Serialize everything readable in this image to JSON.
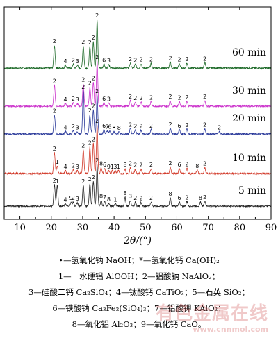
{
  "chart_data": {
    "type": "line",
    "xlabel": "2θ/(°)",
    "xlim": [
      5,
      90
    ],
    "xticks": [
      10,
      20,
      30,
      40,
      50,
      60,
      70,
      80,
      90
    ],
    "y_axis": "none",
    "grid": false,
    "series": [
      {
        "name": "60 min",
        "color": "#1f6b2a",
        "peaks": [
          {
            "x": 21.0,
            "h": 0.47,
            "label": "2"
          },
          {
            "x": 24.5,
            "h": 0.06,
            "label": "4"
          },
          {
            "x": 27.0,
            "h": 0.08,
            "label": "2"
          },
          {
            "x": 28.3,
            "h": 0.06,
            "label": "3"
          },
          {
            "x": 30.2,
            "h": 0.46,
            "label": "2"
          },
          {
            "x": 32.3,
            "h": 0.44,
            "label": "2"
          },
          {
            "x": 33.4,
            "h": 0.54,
            "label": "2"
          },
          {
            "x": 34.6,
            "h": 1.0,
            "label": "2"
          },
          {
            "x": 36.8,
            "h": 0.08,
            "label": "6"
          },
          {
            "x": 38.3,
            "h": 0.07,
            "label": "3"
          },
          {
            "x": 45.2,
            "h": 0.1,
            "label": "2"
          },
          {
            "x": 46.8,
            "h": 0.08,
            "label": "2"
          },
          {
            "x": 48.6,
            "h": 0.09,
            "label": "2"
          },
          {
            "x": 51.8,
            "h": 0.09,
            "label": "2"
          },
          {
            "x": 57.9,
            "h": 0.12,
            "label": "2"
          },
          {
            "x": 60.8,
            "h": 0.09,
            "label": "2"
          },
          {
            "x": 63.2,
            "h": 0.1,
            "label": "2"
          },
          {
            "x": 68.9,
            "h": 0.11,
            "label": "2"
          }
        ]
      },
      {
        "name": "30 min",
        "color": "#cc33cc",
        "peaks": [
          {
            "x": 21.0,
            "h": 0.47,
            "label": "2"
          },
          {
            "x": 24.5,
            "h": 0.06,
            "label": "4"
          },
          {
            "x": 27.0,
            "h": 0.08,
            "label": "2"
          },
          {
            "x": 28.3,
            "h": 0.06,
            "label": "3"
          },
          {
            "x": 30.2,
            "h": 0.5,
            "label": "2"
          },
          {
            "x": 32.3,
            "h": 0.42,
            "label": "2"
          },
          {
            "x": 33.4,
            "h": 0.53,
            "label": "2"
          },
          {
            "x": 34.6,
            "h": 1.0,
            "label": "2"
          },
          {
            "x": 36.8,
            "h": 0.08,
            "label": "6"
          },
          {
            "x": 38.3,
            "h": 0.07,
            "label": "3"
          },
          {
            "x": 45.2,
            "h": 0.12,
            "label": "2"
          },
          {
            "x": 46.8,
            "h": 0.09,
            "label": "2"
          },
          {
            "x": 48.6,
            "h": 0.09,
            "label": "2"
          },
          {
            "x": 51.8,
            "h": 0.1,
            "label": "2"
          },
          {
            "x": 57.9,
            "h": 0.12,
            "label": "2"
          },
          {
            "x": 60.8,
            "h": 0.1,
            "label": "2"
          },
          {
            "x": 63.2,
            "h": 0.11,
            "label": "2"
          },
          {
            "x": 68.9,
            "h": 0.12,
            "label": "2"
          }
        ]
      },
      {
        "name": "20 min",
        "color": "#2b3a9a",
        "peaks": [
          {
            "x": 21.0,
            "h": 0.44,
            "label": "2"
          },
          {
            "x": 24.5,
            "h": 0.06,
            "label": "4"
          },
          {
            "x": 27.0,
            "h": 0.08,
            "label": "2"
          },
          {
            "x": 28.3,
            "h": 0.06,
            "label": "3"
          },
          {
            "x": 30.2,
            "h": 1.0,
            "label": "2"
          },
          {
            "x": 32.3,
            "h": 0.45,
            "label": "2"
          },
          {
            "x": 33.4,
            "h": 0.56,
            "label": "2"
          },
          {
            "x": 34.6,
            "h": 0.9,
            "label": "2"
          },
          {
            "x": 36.8,
            "h": 0.1,
            "label": "6"
          },
          {
            "x": 37.8,
            "h": 0.07,
            "label": "7"
          },
          {
            "x": 38.6,
            "h": 0.07,
            "label": "6"
          },
          {
            "x": 40.0,
            "h": 0.05,
            "label": "•"
          },
          {
            "x": 41.6,
            "h": 0.05,
            "label": "8"
          },
          {
            "x": 45.2,
            "h": 0.12,
            "label": "2"
          },
          {
            "x": 46.8,
            "h": 0.09,
            "label": "2"
          },
          {
            "x": 48.6,
            "h": 0.09,
            "label": "2"
          },
          {
            "x": 51.8,
            "h": 0.1,
            "label": "2"
          },
          {
            "x": 57.9,
            "h": 0.13,
            "label": "2"
          },
          {
            "x": 60.8,
            "h": 0.1,
            "label": "6"
          },
          {
            "x": 63.2,
            "h": 0.11,
            "label": "2"
          },
          {
            "x": 68.9,
            "h": 0.12,
            "label": "2"
          },
          {
            "x": 73.5,
            "h": 0.06,
            "label": "2"
          }
        ]
      },
      {
        "name": "10 min",
        "color": "#d23a2a",
        "peaks": [
          {
            "x": 21.0,
            "h": 0.43,
            "label": "2"
          },
          {
            "x": 21.9,
            "h": 0.16,
            "label": "1"
          },
          {
            "x": 24.5,
            "h": 0.06,
            "label": "4"
          },
          {
            "x": 27.0,
            "h": 0.08,
            "label": "2"
          },
          {
            "x": 28.3,
            "h": 0.06,
            "label": "3"
          },
          {
            "x": 30.2,
            "h": 0.49,
            "label": "2"
          },
          {
            "x": 32.3,
            "h": 0.55,
            "label": "2"
          },
          {
            "x": 33.4,
            "h": 0.62,
            "label": "2"
          },
          {
            "x": 34.6,
            "h": 1.0,
            "label": "2"
          },
          {
            "x": 35.9,
            "h": 0.12,
            "label": "8"
          },
          {
            "x": 37.0,
            "h": 0.1,
            "label": "6"
          },
          {
            "x": 38.3,
            "h": 0.06,
            "label": "9"
          },
          {
            "x": 39.4,
            "h": 0.06,
            "label": "1"
          },
          {
            "x": 40.4,
            "h": 0.06,
            "label": "3"
          },
          {
            "x": 41.4,
            "h": 0.06,
            "label": "1"
          },
          {
            "x": 43.5,
            "h": 0.1,
            "label": "8"
          },
          {
            "x": 45.2,
            "h": 0.12,
            "label": "2"
          },
          {
            "x": 46.8,
            "h": 0.09,
            "label": "2"
          },
          {
            "x": 48.6,
            "h": 0.09,
            "label": "2"
          },
          {
            "x": 51.8,
            "h": 0.1,
            "label": "2"
          },
          {
            "x": 57.9,
            "h": 0.13,
            "label": "2"
          },
          {
            "x": 60.8,
            "h": 0.1,
            "label": "6"
          },
          {
            "x": 63.2,
            "h": 0.11,
            "label": "2"
          },
          {
            "x": 66.5,
            "h": 0.07,
            "label": "8"
          },
          {
            "x": 68.9,
            "h": 0.12,
            "label": "2"
          }
        ]
      },
      {
        "name": "5 min",
        "color": "#222222",
        "peaks": [
          {
            "x": 21.0,
            "h": 0.52,
            "label": "2"
          },
          {
            "x": 21.9,
            "h": 0.5,
            "label": "1"
          },
          {
            "x": 24.5,
            "h": 0.06,
            "label": "4"
          },
          {
            "x": 26.3,
            "h": 0.1,
            "label": "9"
          },
          {
            "x": 27.0,
            "h": 0.1,
            "label": "2"
          },
          {
            "x": 28.3,
            "h": 0.08,
            "label": "3"
          },
          {
            "x": 30.2,
            "h": 0.5,
            "label": "2"
          },
          {
            "x": 32.3,
            "h": 0.55,
            "label": "2"
          },
          {
            "x": 33.4,
            "h": 0.6,
            "label": "2"
          },
          {
            "x": 34.6,
            "h": 1.0,
            "label": "2"
          },
          {
            "x": 35.9,
            "h": 0.14,
            "label": "8"
          },
          {
            "x": 37.0,
            "h": 0.12,
            "label": "7"
          },
          {
            "x": 38.3,
            "h": 0.07,
            "label": "8"
          },
          {
            "x": 40.4,
            "h": 0.06,
            "label": "1"
          },
          {
            "x": 43.5,
            "h": 0.22,
            "label": "8"
          },
          {
            "x": 45.2,
            "h": 0.14,
            "label": "3"
          },
          {
            "x": 46.8,
            "h": 0.1,
            "label": "2"
          },
          {
            "x": 48.6,
            "h": 0.09,
            "label": "2"
          },
          {
            "x": 51.8,
            "h": 0.1,
            "label": "2"
          },
          {
            "x": 57.9,
            "h": 0.2,
            "label": "8"
          },
          {
            "x": 60.8,
            "h": 0.1,
            "label": "6"
          },
          {
            "x": 63.2,
            "h": 0.11,
            "label": "2"
          },
          {
            "x": 67.5,
            "h": 0.1,
            "label": "8"
          },
          {
            "x": 68.9,
            "h": 0.12,
            "label": "2"
          }
        ]
      }
    ]
  },
  "legend_lines": [
    "•—氢氧化钠 NaOH；*—氢氧化钙 Ca(OH)₂",
    "1—一水硬铝 AlOOH；2—铝酸钠 NaAlO₂；",
    "3—硅酸二钙 Ca₂SiO₄；4—钛酸钙 CaTiO₃；5—石英 SiO₂；",
    "6—铁酸钠 Ca₃Fe₂(SiO₄)₃；7—铝酸钾 KAlO₂；",
    "8—氧化铝 Al₂O₃；9—氧化钙 CaO。"
  ],
  "watermark": {
    "text": "有色金属在线",
    "url": "www.cnnmol.com"
  }
}
